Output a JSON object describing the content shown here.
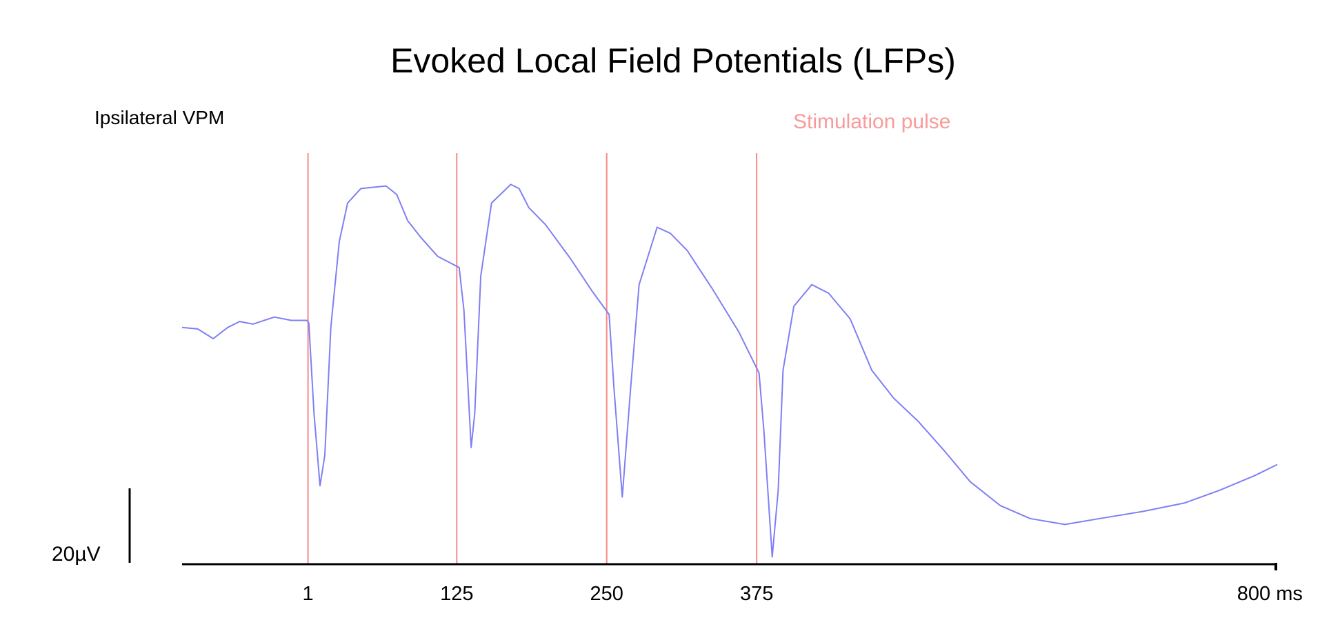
{
  "chart_data": {
    "type": "line",
    "title": "Evoked Local Field Potentials (LFPs)",
    "panel_label": "Ipsilateral VPM",
    "annotation": "Stimulation pulse",
    "scale_bar_label": "20µV",
    "scale_bar_value": 20,
    "xlabel": "ms",
    "x_ticks": [
      {
        "value": 1,
        "label": "1"
      },
      {
        "value": 125,
        "label": "125"
      },
      {
        "value": 250,
        "label": "250"
      },
      {
        "value": 375,
        "label": "375"
      },
      {
        "value": 800,
        "label": "800 ms"
      }
    ],
    "stimulation_times": [
      1,
      125,
      250,
      375
    ],
    "xlim": [
      -104,
      809
    ],
    "units_y": "µV",
    "colors": {
      "trace": "#7f7ff5",
      "stimulus": "#f88a8a",
      "annotation": "#f99a9a",
      "axis": "#000000"
    },
    "series": [
      {
        "name": "LFP",
        "x": [
          -104,
          -91,
          -78,
          -66,
          -56,
          -45,
          -27,
          -13,
          0,
          1.7,
          6,
          11,
          15,
          20,
          27,
          34,
          45,
          66,
          75,
          84,
          95,
          109,
          127,
          131,
          137,
          140,
          145,
          154,
          170,
          177,
          185,
          199,
          220,
          238,
          252,
          256,
          263,
          270,
          277,
          292,
          303,
          317,
          338,
          360,
          377,
          381,
          388,
          393,
          397,
          406,
          421,
          435,
          453,
          471,
          489,
          510,
          532,
          553,
          578,
          603,
          632,
          661,
          697,
          732,
          761,
          790,
          809
        ],
        "y": [
          -0.7,
          -1.1,
          -3.7,
          -0.7,
          0.9,
          0.2,
          2.1,
          1.2,
          1.2,
          0.5,
          -23.7,
          -43.2,
          -35,
          -0.7,
          22.3,
          32.7,
          36.6,
          37.3,
          35,
          28,
          23.5,
          18.4,
          15.4,
          3.9,
          -32.9,
          -23.7,
          13.1,
          32.7,
          37.7,
          36.6,
          31.5,
          26.9,
          17.7,
          9,
          2.8,
          -16.8,
          -46.2,
          -16.8,
          10.8,
          26.2,
          24.6,
          20,
          9.7,
          -1.8,
          -12.9,
          -28.3,
          -62.3,
          -44.4,
          -12.2,
          5,
          10.8,
          8.5,
          1.6,
          -12.2,
          -19.6,
          -26,
          -34,
          -42.1,
          -48.5,
          -52,
          -53.6,
          -52,
          -50.1,
          -47.8,
          -44.4,
          -40.5,
          -37.5
        ]
      }
    ]
  }
}
